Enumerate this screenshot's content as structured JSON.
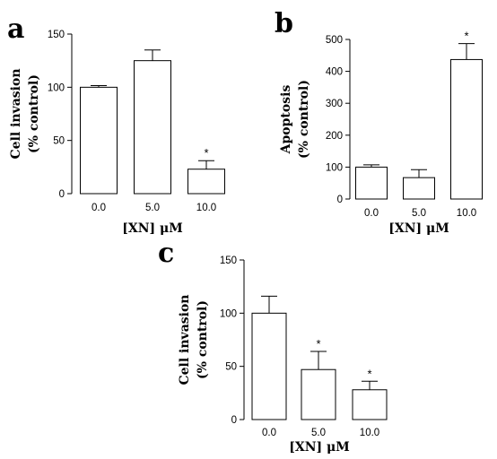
{
  "chart_data": [
    {
      "panel": "a",
      "type": "bar",
      "categories": [
        "0.0",
        "5.0",
        "10.0"
      ],
      "values": [
        100,
        125,
        23
      ],
      "errors": [
        1.5,
        10,
        8
      ],
      "significant": [
        false,
        false,
        true
      ],
      "sig_marker": "*",
      "ylim": [
        0,
        150
      ],
      "yticks": [
        0,
        50,
        100,
        150
      ],
      "xlabel": "[XN] μM",
      "ylabel": [
        "Cell invasion",
        "(% control)"
      ]
    },
    {
      "panel": "b",
      "type": "bar",
      "categories": [
        "0.0",
        "5.0",
        "10.0"
      ],
      "values": [
        100,
        67,
        437
      ],
      "errors": [
        7,
        25,
        50
      ],
      "significant": [
        false,
        false,
        true
      ],
      "sig_marker": "*",
      "ylim": [
        0,
        500
      ],
      "yticks": [
        0,
        100,
        200,
        300,
        400,
        500
      ],
      "xlabel": "[XN] μM",
      "ylabel": [
        "Apoptosis",
        "(% control)"
      ]
    },
    {
      "panel": "c",
      "type": "bar",
      "categories": [
        "0.0",
        "5.0",
        "10.0"
      ],
      "values": [
        100,
        47,
        28
      ],
      "errors": [
        16,
        17,
        8
      ],
      "significant": [
        false,
        true,
        true
      ],
      "sig_marker": "*",
      "ylim": [
        0,
        150
      ],
      "yticks": [
        0,
        50,
        100,
        150
      ],
      "xlabel": "[XN] μM",
      "ylabel": [
        "Cell invasion",
        "(% control)"
      ]
    }
  ]
}
